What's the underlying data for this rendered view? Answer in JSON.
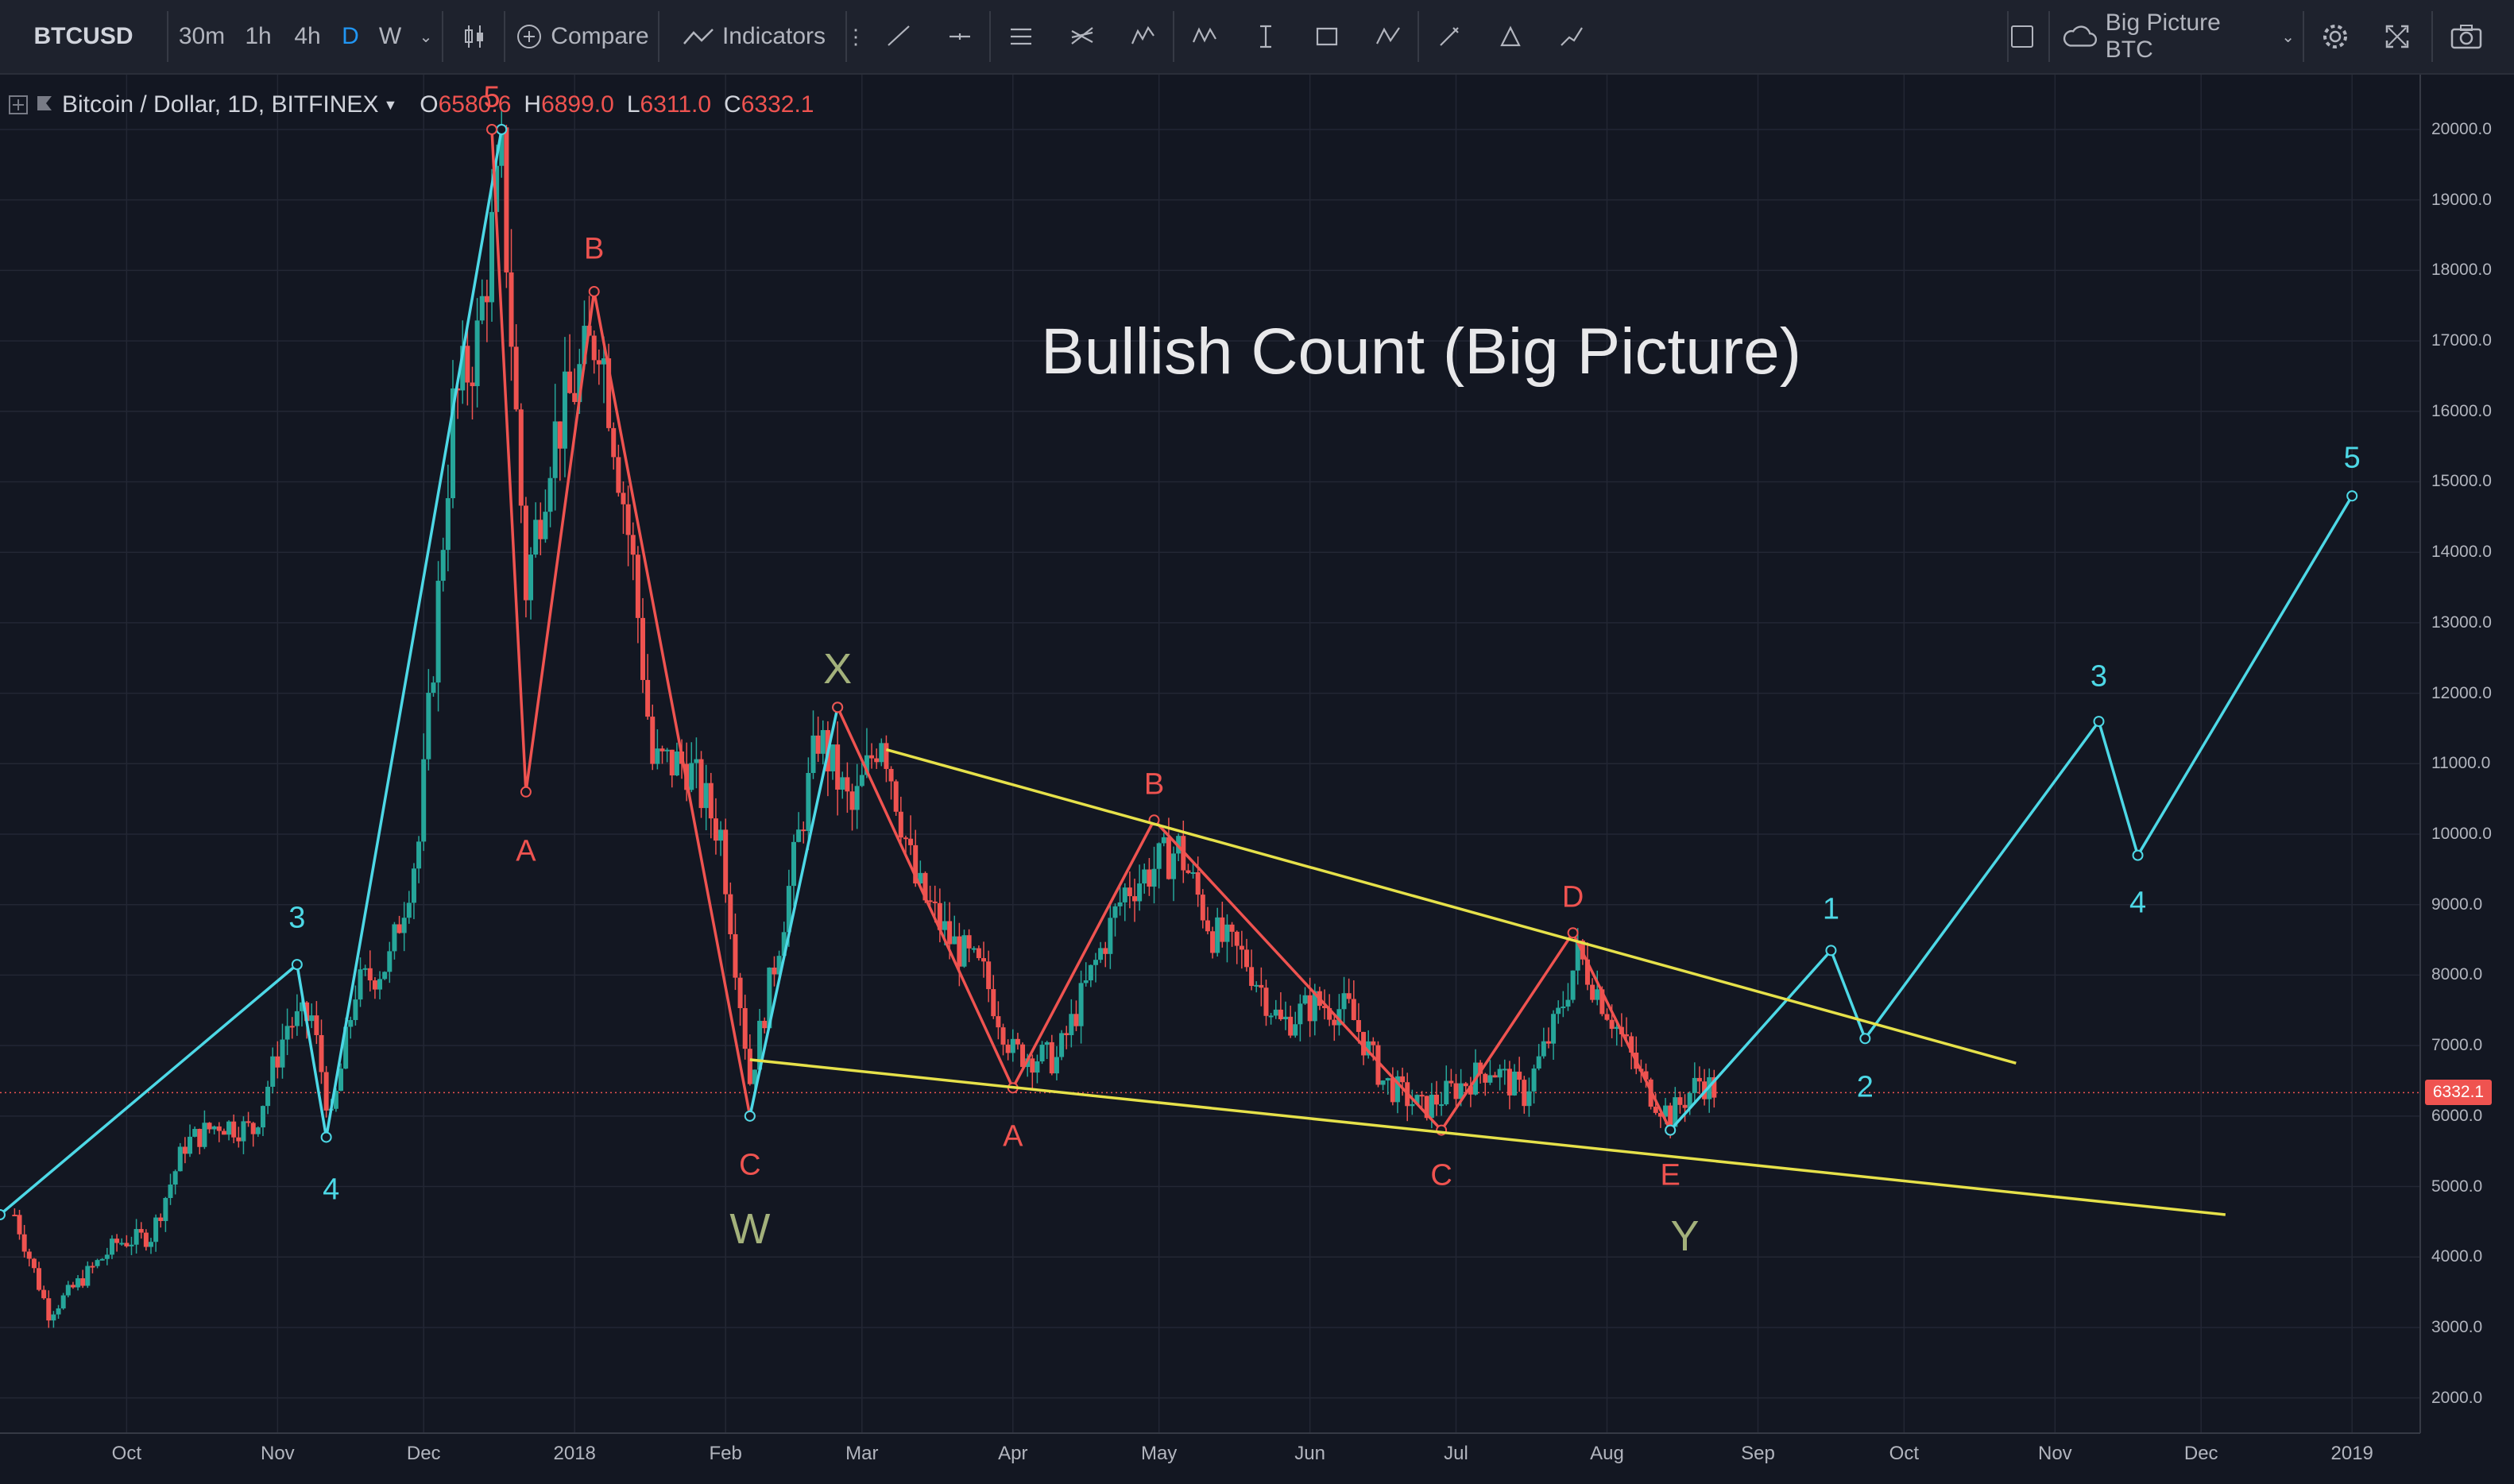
{
  "symbol": "BTCUSD",
  "intervals": [
    "30m",
    "1h",
    "4h",
    "D",
    "W"
  ],
  "compare_label": "Compare",
  "indicators_label": "Indicators",
  "layout_name": "Big Picture BTC",
  "legend": {
    "instrument": "Bitcoin / Dollar, 1D, BITFINEX",
    "o_label": "O",
    "o_value": "6580.6",
    "h_label": "H",
    "h_value": "6899.0",
    "l_label": "L",
    "l_value": "6311.0",
    "c_label": "C",
    "c_value": "6332.1"
  },
  "title": "Bullish Count (Big Picture)",
  "last_price_tag": "6332.1",
  "colors": {
    "background": "#131722",
    "up_candle": "#26a69a",
    "down_candle": "#ef5350",
    "red_wave": "#ef5350",
    "cyan_wave": "#4dd8e6",
    "trendline": "#e6e14a",
    "wxy_label": "#a3b17b"
  },
  "chart_data": {
    "type": "line",
    "title": "Bullish Count (Big Picture)",
    "xlabel": "",
    "ylabel": "",
    "x_ticks": [
      "Oct",
      "Nov",
      "Dec",
      "2018",
      "Feb",
      "Mar",
      "Apr",
      "May",
      "Jun",
      "Jul",
      "Aug",
      "Sep",
      "Oct",
      "Nov",
      "Dec",
      "2019"
    ],
    "y_ticks": [
      "20000.0",
      "19000.0",
      "18000.0",
      "17000.0",
      "16000.0",
      "15000.0",
      "14000.0",
      "13000.0",
      "12000.0",
      "11000.0",
      "10000.0",
      "9000.0",
      "8000.0",
      "7000.0",
      "6000.0",
      "5000.0",
      "4000.0",
      "3000.0",
      "2000.0"
    ],
    "ylim": [
      1500,
      20800
    ],
    "xlim": [
      "2017-09-05",
      "2019-01-15"
    ],
    "grid": true,
    "series": [
      {
        "style": "candlestick",
        "points": [
          [
            "2017-09-08",
            4600
          ],
          [
            "2017-09-15",
            3200
          ],
          [
            "2017-09-22",
            3700
          ],
          [
            "2017-09-29",
            4200
          ],
          [
            "2017-10-06",
            4300
          ],
          [
            "2017-10-13",
            5600
          ],
          [
            "2017-10-20",
            5900
          ],
          [
            "2017-10-27",
            5800
          ],
          [
            "2017-11-03",
            7300
          ],
          [
            "2017-11-08",
            7400
          ],
          [
            "2017-11-12",
            5900
          ],
          [
            "2017-11-17",
            7800
          ],
          [
            "2017-11-24",
            8200
          ],
          [
            "2017-11-30",
            9900
          ],
          [
            "2017-12-07",
            16000
          ],
          [
            "2017-12-12",
            17000
          ],
          [
            "2017-12-17",
            19500
          ],
          [
            "2017-12-22",
            13500
          ],
          [
            "2017-12-27",
            15500
          ],
          [
            "2018-01-06",
            17200
          ],
          [
            "2018-01-13",
            13800
          ],
          [
            "2018-01-17",
            11000
          ],
          [
            "2018-01-24",
            11000
          ],
          [
            "2018-01-31",
            10000
          ],
          [
            "2018-02-06",
            6500
          ],
          [
            "2018-02-12",
            8500
          ],
          [
            "2018-02-20",
            11400
          ],
          [
            "2018-02-27",
            10300
          ],
          [
            "2018-03-05",
            11500
          ],
          [
            "2018-03-12",
            9300
          ],
          [
            "2018-03-19",
            8500
          ],
          [
            "2018-03-26",
            8000
          ],
          [
            "2018-04-01",
            6900
          ],
          [
            "2018-04-10",
            6800
          ],
          [
            "2018-04-17",
            8000
          ],
          [
            "2018-04-24",
            9200
          ],
          [
            "2018-05-05",
            9800
          ],
          [
            "2018-05-12",
            8600
          ],
          [
            "2018-05-19",
            8200
          ],
          [
            "2018-05-26",
            7300
          ],
          [
            "2018-06-02",
            7600
          ],
          [
            "2018-06-09",
            7500
          ],
          [
            "2018-06-16",
            6500
          ],
          [
            "2018-06-24",
            6100
          ],
          [
            "2018-07-01",
            6400
          ],
          [
            "2018-07-08",
            6700
          ],
          [
            "2018-07-15",
            6300
          ],
          [
            "2018-07-22",
            7400
          ],
          [
            "2018-07-26",
            8300
          ],
          [
            "2018-08-02",
            7400
          ],
          [
            "2018-08-09",
            6400
          ],
          [
            "2018-08-14",
            6000
          ],
          [
            "2018-08-20",
            6500
          ],
          [
            "2018-08-24",
            6332
          ]
        ]
      },
      {
        "name": "",
        "style": "cyan-wave-1",
        "points": [
          [
            "2017-09-05",
            4600
          ],
          [
            "2017-11-05",
            8150
          ],
          [
            "2017-11-11",
            5700
          ],
          [
            "2017-12-17",
            20000
          ]
        ]
      },
      {
        "name": "",
        "style": "red-wave-abc",
        "points": [
          [
            "2017-12-15",
            20000
          ],
          [
            "2017-12-22",
            10600
          ],
          [
            "2018-01-05",
            17700
          ],
          [
            "2018-02-06",
            6000
          ]
        ]
      },
      {
        "name": "",
        "style": "cyan-wave-x",
        "points": [
          [
            "2018-02-06",
            6000
          ],
          [
            "2018-02-24",
            11800
          ]
        ]
      },
      {
        "name": "",
        "style": "red-wave-triangle",
        "points": [
          [
            "2018-02-24",
            11800
          ],
          [
            "2018-04-01",
            6400
          ],
          [
            "2018-04-30",
            10200
          ],
          [
            "2018-06-28",
            5800
          ],
          [
            "2018-07-25",
            8600
          ],
          [
            "2018-08-14",
            5800
          ]
        ]
      },
      {
        "name": "",
        "style": "cyan-wave-projection",
        "points": [
          [
            "2018-08-14",
            5800
          ],
          [
            "2018-09-16",
            8350
          ],
          [
            "2018-09-23",
            7100
          ],
          [
            "2018-11-10",
            11600
          ],
          [
            "2018-11-18",
            9700
          ],
          [
            "2019-01-01",
            14800
          ]
        ]
      },
      {
        "name": "",
        "style": "trendline-upper",
        "points": [
          [
            "2018-03-06",
            11200
          ],
          [
            "2018-10-24",
            6750
          ]
        ]
      },
      {
        "name": "",
        "style": "trendline-lower",
        "points": [
          [
            "2018-02-06",
            6800
          ],
          [
            "2018-12-06",
            4600
          ]
        ]
      }
    ],
    "annotations": [
      {
        "text": "3",
        "color": "cyan",
        "x": "2017-11-05",
        "y": 8800
      },
      {
        "text": "4",
        "color": "cyan",
        "x": "2017-11-12",
        "y": 4950
      },
      {
        "text": "5",
        "color": "red",
        "x": "2017-12-15",
        "y": 20450
      },
      {
        "text": "A",
        "color": "red",
        "x": "2017-12-22",
        "y": 9750
      },
      {
        "text": "B",
        "color": "red",
        "x": "2018-01-05",
        "y": 18300
      },
      {
        "text": "C",
        "color": "red",
        "x": "2018-02-06",
        "y": 5300
      },
      {
        "text": "W",
        "color": "green",
        "x": "2018-02-06",
        "y": 4400
      },
      {
        "text": "X",
        "color": "green",
        "x": "2018-02-24",
        "y": 12350
      },
      {
        "text": "A",
        "color": "red",
        "x": "2018-04-01",
        "y": 5700
      },
      {
        "text": "B",
        "color": "red",
        "x": "2018-04-30",
        "y": 10700
      },
      {
        "text": "C",
        "color": "red",
        "x": "2018-06-28",
        "y": 5150
      },
      {
        "text": "D",
        "color": "red",
        "x": "2018-07-25",
        "y": 9100
      },
      {
        "text": "E",
        "color": "red",
        "x": "2018-08-14",
        "y": 5150
      },
      {
        "text": "Y",
        "color": "green",
        "x": "2018-08-17",
        "y": 4300
      },
      {
        "text": "1",
        "color": "cyan",
        "x": "2018-09-16",
        "y": 8930
      },
      {
        "text": "2",
        "color": "cyan",
        "x": "2018-09-23",
        "y": 6400
      },
      {
        "text": "3",
        "color": "cyan",
        "x": "2018-11-10",
        "y": 12230
      },
      {
        "text": "4",
        "color": "cyan",
        "x": "2018-11-18",
        "y": 9020
      },
      {
        "text": "5",
        "color": "cyan",
        "x": "2019-01-01",
        "y": 15330
      }
    ]
  }
}
